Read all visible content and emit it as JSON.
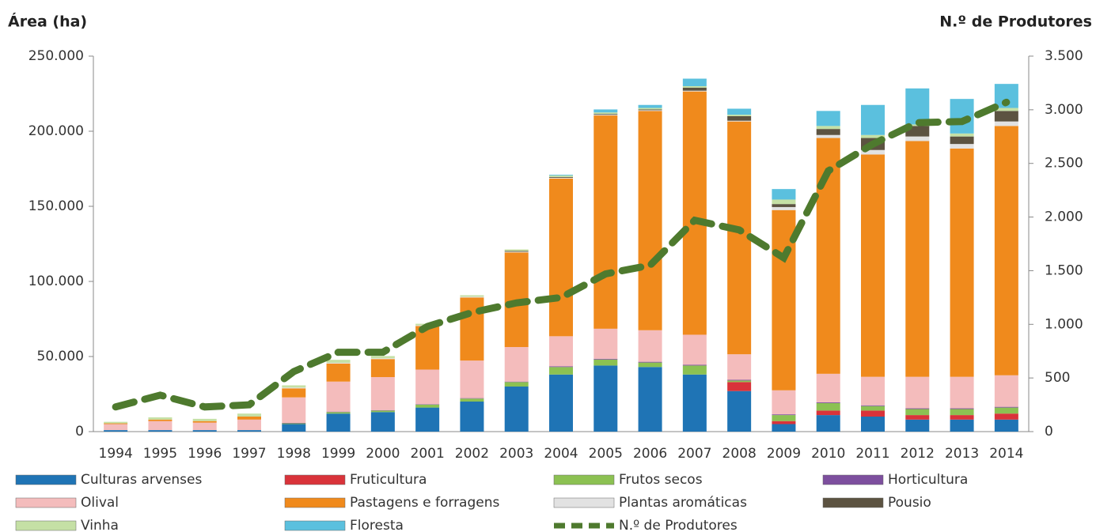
{
  "chart_data": {
    "type": "bar",
    "ylabel": "Área (ha)",
    "y2label": "N.º de Produtores",
    "categories": [
      "1994",
      "1995",
      "1996",
      "1997",
      "1998",
      "1999",
      "2000",
      "2001",
      "2002",
      "2003",
      "2004",
      "2005",
      "2006",
      "2007",
      "2008",
      "2009",
      "2010",
      "2011",
      "2012",
      "2013",
      "2014"
    ],
    "stacked": true,
    "ylim": [
      0,
      250000
    ],
    "yticks": [
      0,
      {
        "value": 50000,
        "label": "50.000"
      },
      {
        "value": 100000,
        "label": "100.000"
      },
      {
        "value": 150000,
        "label": "150.000"
      },
      {
        "value": 200000,
        "label": "200.000"
      },
      {
        "value": 250000,
        "label": "250.000"
      }
    ],
    "y2lim": [
      0,
      3500
    ],
    "y2ticks": [
      0,
      500,
      {
        "value": 1000,
        "label": "1.000"
      },
      {
        "value": 1500,
        "label": "1.500"
      },
      {
        "value": 2000,
        "label": "2.000"
      },
      {
        "value": 2500,
        "label": "2.500"
      },
      {
        "value": 3000,
        "label": "3.000"
      },
      {
        "value": 3500,
        "label": "3.500"
      }
    ],
    "series": [
      {
        "name": "Culturas arvenses",
        "color": "#1f74b5",
        "values": [
          1000,
          1000,
          1000,
          1000,
          5000,
          12000,
          13000,
          16000,
          20000,
          30000,
          38000,
          44000,
          43000,
          38000,
          27000,
          5000,
          11000,
          10000,
          8000,
          8000,
          8000
        ]
      },
      {
        "name": "Fruticultura",
        "color": "#d9333a",
        "values": [
          0,
          0,
          0,
          0,
          0,
          0,
          0,
          0,
          0,
          0,
          0,
          0,
          0,
          0,
          6000,
          2000,
          3000,
          4000,
          3000,
          3000,
          4000
        ]
      },
      {
        "name": "Frutos secos",
        "color": "#8cc152",
        "values": [
          0,
          0,
          0,
          0,
          500,
          1000,
          1000,
          2000,
          2000,
          3000,
          5000,
          4000,
          3000,
          6000,
          1000,
          4000,
          5000,
          3000,
          4000,
          4000,
          4000
        ]
      },
      {
        "name": "Horticultura",
        "color": "#7d4f9e",
        "values": [
          0,
          0,
          0,
          0,
          300,
          300,
          300,
          300,
          300,
          300,
          500,
          500,
          500,
          500,
          500,
          500,
          500,
          500,
          500,
          500,
          500
        ]
      },
      {
        "name": "Olival",
        "color": "#f4bcbc",
        "values": [
          4000,
          6000,
          5000,
          7000,
          17000,
          20000,
          22000,
          23000,
          25000,
          23000,
          20000,
          20000,
          21000,
          20000,
          17000,
          16000,
          19000,
          19000,
          21000,
          21000,
          21000
        ]
      },
      {
        "name": "Pastagens e forragens",
        "color": "#f08a1c",
        "values": [
          500,
          1000,
          1000,
          2000,
          6000,
          12000,
          12000,
          29000,
          42000,
          63000,
          105000,
          142000,
          146000,
          162000,
          155000,
          120000,
          157000,
          148000,
          157000,
          152000,
          166000
        ]
      },
      {
        "name": "Plantas aromáticas",
        "color": "#e2e2e2",
        "values": [
          0,
          0,
          0,
          0,
          500,
          500,
          500,
          500,
          500,
          500,
          500,
          500,
          500,
          500,
          500,
          2000,
          2000,
          3000,
          3000,
          3000,
          3000
        ]
      },
      {
        "name": "Pousio",
        "color": "#5c5341",
        "values": [
          0,
          0,
          0,
          0,
          0,
          0,
          0,
          0,
          0,
          500,
          500,
          500,
          500,
          2000,
          3000,
          2000,
          4000,
          8000,
          7000,
          5000,
          7000
        ]
      },
      {
        "name": "Vinha",
        "color": "#c5e0a5",
        "values": [
          1000,
          1500,
          1500,
          2000,
          1500,
          2000,
          1500,
          1000,
          1000,
          1000,
          1000,
          1000,
          1000,
          1000,
          1000,
          3000,
          2000,
          2000,
          1000,
          2000,
          2000
        ]
      },
      {
        "name": "Floresta",
        "color": "#5bc0de",
        "values": [
          0,
          0,
          0,
          0,
          0,
          0,
          0,
          0,
          0,
          0,
          500,
          2000,
          2000,
          5000,
          4000,
          7000,
          10000,
          20000,
          24000,
          23000,
          16000
        ]
      },
      {
        "name": "N.º de Produtores",
        "color": "#4e7a2e",
        "type": "line",
        "axis": "y2",
        "dashed": true,
        "values": [
          230,
          340,
          230,
          250,
          560,
          740,
          740,
          980,
          1110,
          1200,
          1250,
          1470,
          1550,
          1970,
          1880,
          1620,
          2430,
          2680,
          2880,
          2890,
          3070
        ]
      }
    ]
  }
}
